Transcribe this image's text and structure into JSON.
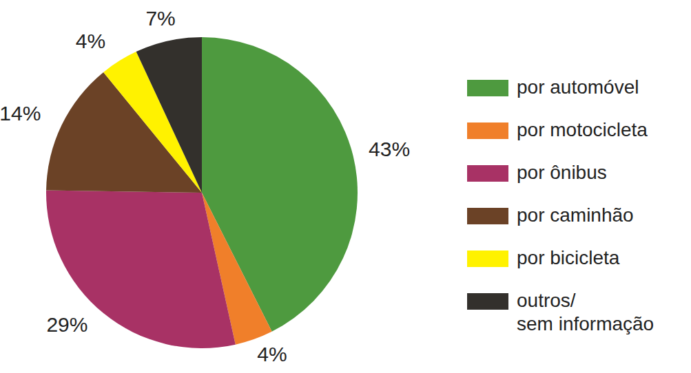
{
  "chart_data": {
    "type": "pie",
    "categories": [
      "por automóvel",
      "por motocicleta",
      "por ônibus",
      "por caminhão",
      "por bicicleta",
      "outros/\nsem informação"
    ],
    "values": [
      43,
      4,
      29,
      14,
      4,
      7
    ],
    "value_labels": [
      "43%",
      "4%",
      "29%",
      "14%",
      "4%",
      "7%"
    ],
    "colors": [
      "#4e9a3f",
      "#f07f2a",
      "#a83265",
      "#6b4226",
      "#fff200",
      "#33302c"
    ],
    "data_labels": true,
    "legend": "right"
  }
}
